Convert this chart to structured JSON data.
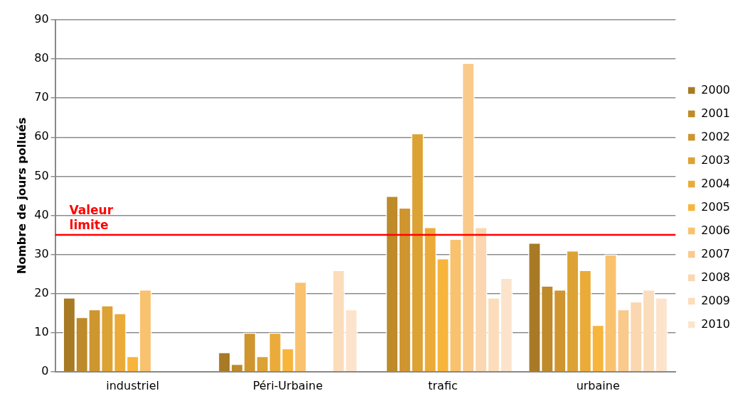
{
  "chart_data": {
    "type": "bar",
    "ylabel": "Nombre de jours pollués",
    "categories": [
      "industriel",
      "Péri-Urbaine",
      "trafic",
      "urbaine"
    ],
    "series": [
      {
        "name": "2000",
        "color": "#a87a25",
        "values": [
          19,
          5,
          null,
          33
        ]
      },
      {
        "name": "2001",
        "color": "#bf8a2a",
        "values": [
          14,
          2,
          45,
          22
        ]
      },
      {
        "name": "2002",
        "color": "#cf952f",
        "values": [
          16,
          10,
          42,
          21
        ]
      },
      {
        "name": "2003",
        "color": "#dca233",
        "values": [
          17,
          4,
          61,
          31
        ]
      },
      {
        "name": "2004",
        "color": "#eaab38",
        "values": [
          15,
          10,
          37,
          26
        ]
      },
      {
        "name": "2005",
        "color": "#f8b53c",
        "values": [
          4,
          6,
          29,
          12
        ]
      },
      {
        "name": "2006",
        "color": "#f9c26e",
        "values": [
          21,
          23,
          34,
          30
        ]
      },
      {
        "name": "2007",
        "color": "#f9ca8c",
        "values": [
          null,
          null,
          79,
          16
        ]
      },
      {
        "name": "2008",
        "color": "#fad7b0",
        "values": [
          null,
          null,
          37,
          18
        ]
      },
      {
        "name": "2009",
        "color": "#fbddbc",
        "values": [
          null,
          26,
          19,
          21
        ]
      },
      {
        "name": "2010",
        "color": "#fce4cc",
        "values": [
          null,
          16,
          24,
          19
        ]
      }
    ],
    "ylim": [
      0,
      90
    ],
    "yticks": [
      0,
      10,
      20,
      30,
      40,
      50,
      60,
      70,
      80,
      90
    ],
    "grid": "y",
    "legend": "right",
    "ref_lines": [
      {
        "axis": "y",
        "value": 35,
        "label": "Valeur limite",
        "color": "#ff0000"
      }
    ]
  }
}
